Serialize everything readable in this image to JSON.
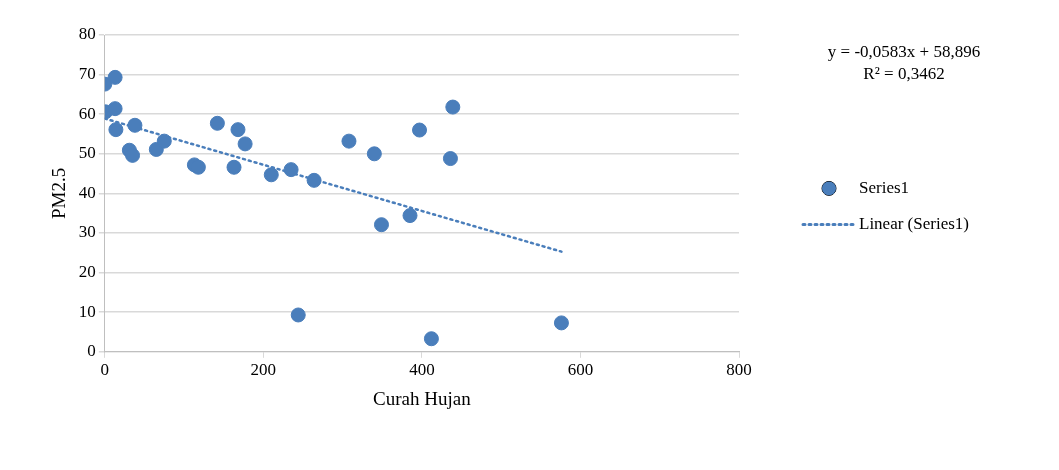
{
  "chart_data": {
    "type": "scatter",
    "xlabel": "Curah Hujan",
    "ylabel": "PM2.5",
    "xlim": [
      0,
      800
    ],
    "xticks": [
      0,
      200,
      400,
      600,
      800
    ],
    "ylim": [
      0,
      80
    ],
    "yticks": [
      0,
      10,
      20,
      30,
      40,
      50,
      60,
      70,
      80
    ],
    "grid": "y",
    "legend": "right",
    "marker": "circle",
    "annotations": [
      "y = -0,0583x + 58,896",
      "R² = 0,3462"
    ],
    "series": [
      {
        "name": "Series1",
        "color": "#4a7ebb",
        "x": [
          0,
          13,
          1,
          13,
          14,
          38,
          31,
          35,
          65,
          75,
          113,
          118,
          142,
          168,
          177,
          163,
          210,
          235,
          264,
          244,
          308,
          340,
          349,
          385,
          397,
          439,
          436,
          412,
          576
        ],
        "values": [
          67.6,
          69.3,
          60.6,
          61.4,
          56.1,
          57.2,
          50.9,
          49.6,
          51.1,
          53.2,
          47.2,
          46.6,
          57.7,
          56.1,
          52.5,
          46.6,
          44.7,
          46.0,
          43.3,
          9.3,
          53.2,
          50.0,
          32.1,
          34.4,
          56.0,
          61.8,
          48.8,
          3.3,
          7.3
        ]
      },
      {
        "name": "Linear (Series1)",
        "type": "line",
        "line_style": "dotted",
        "marker": "none",
        "color": "#4a7ebb",
        "x": [
          0,
          576
        ],
        "values": [
          58.9,
          25.3
        ]
      }
    ]
  }
}
